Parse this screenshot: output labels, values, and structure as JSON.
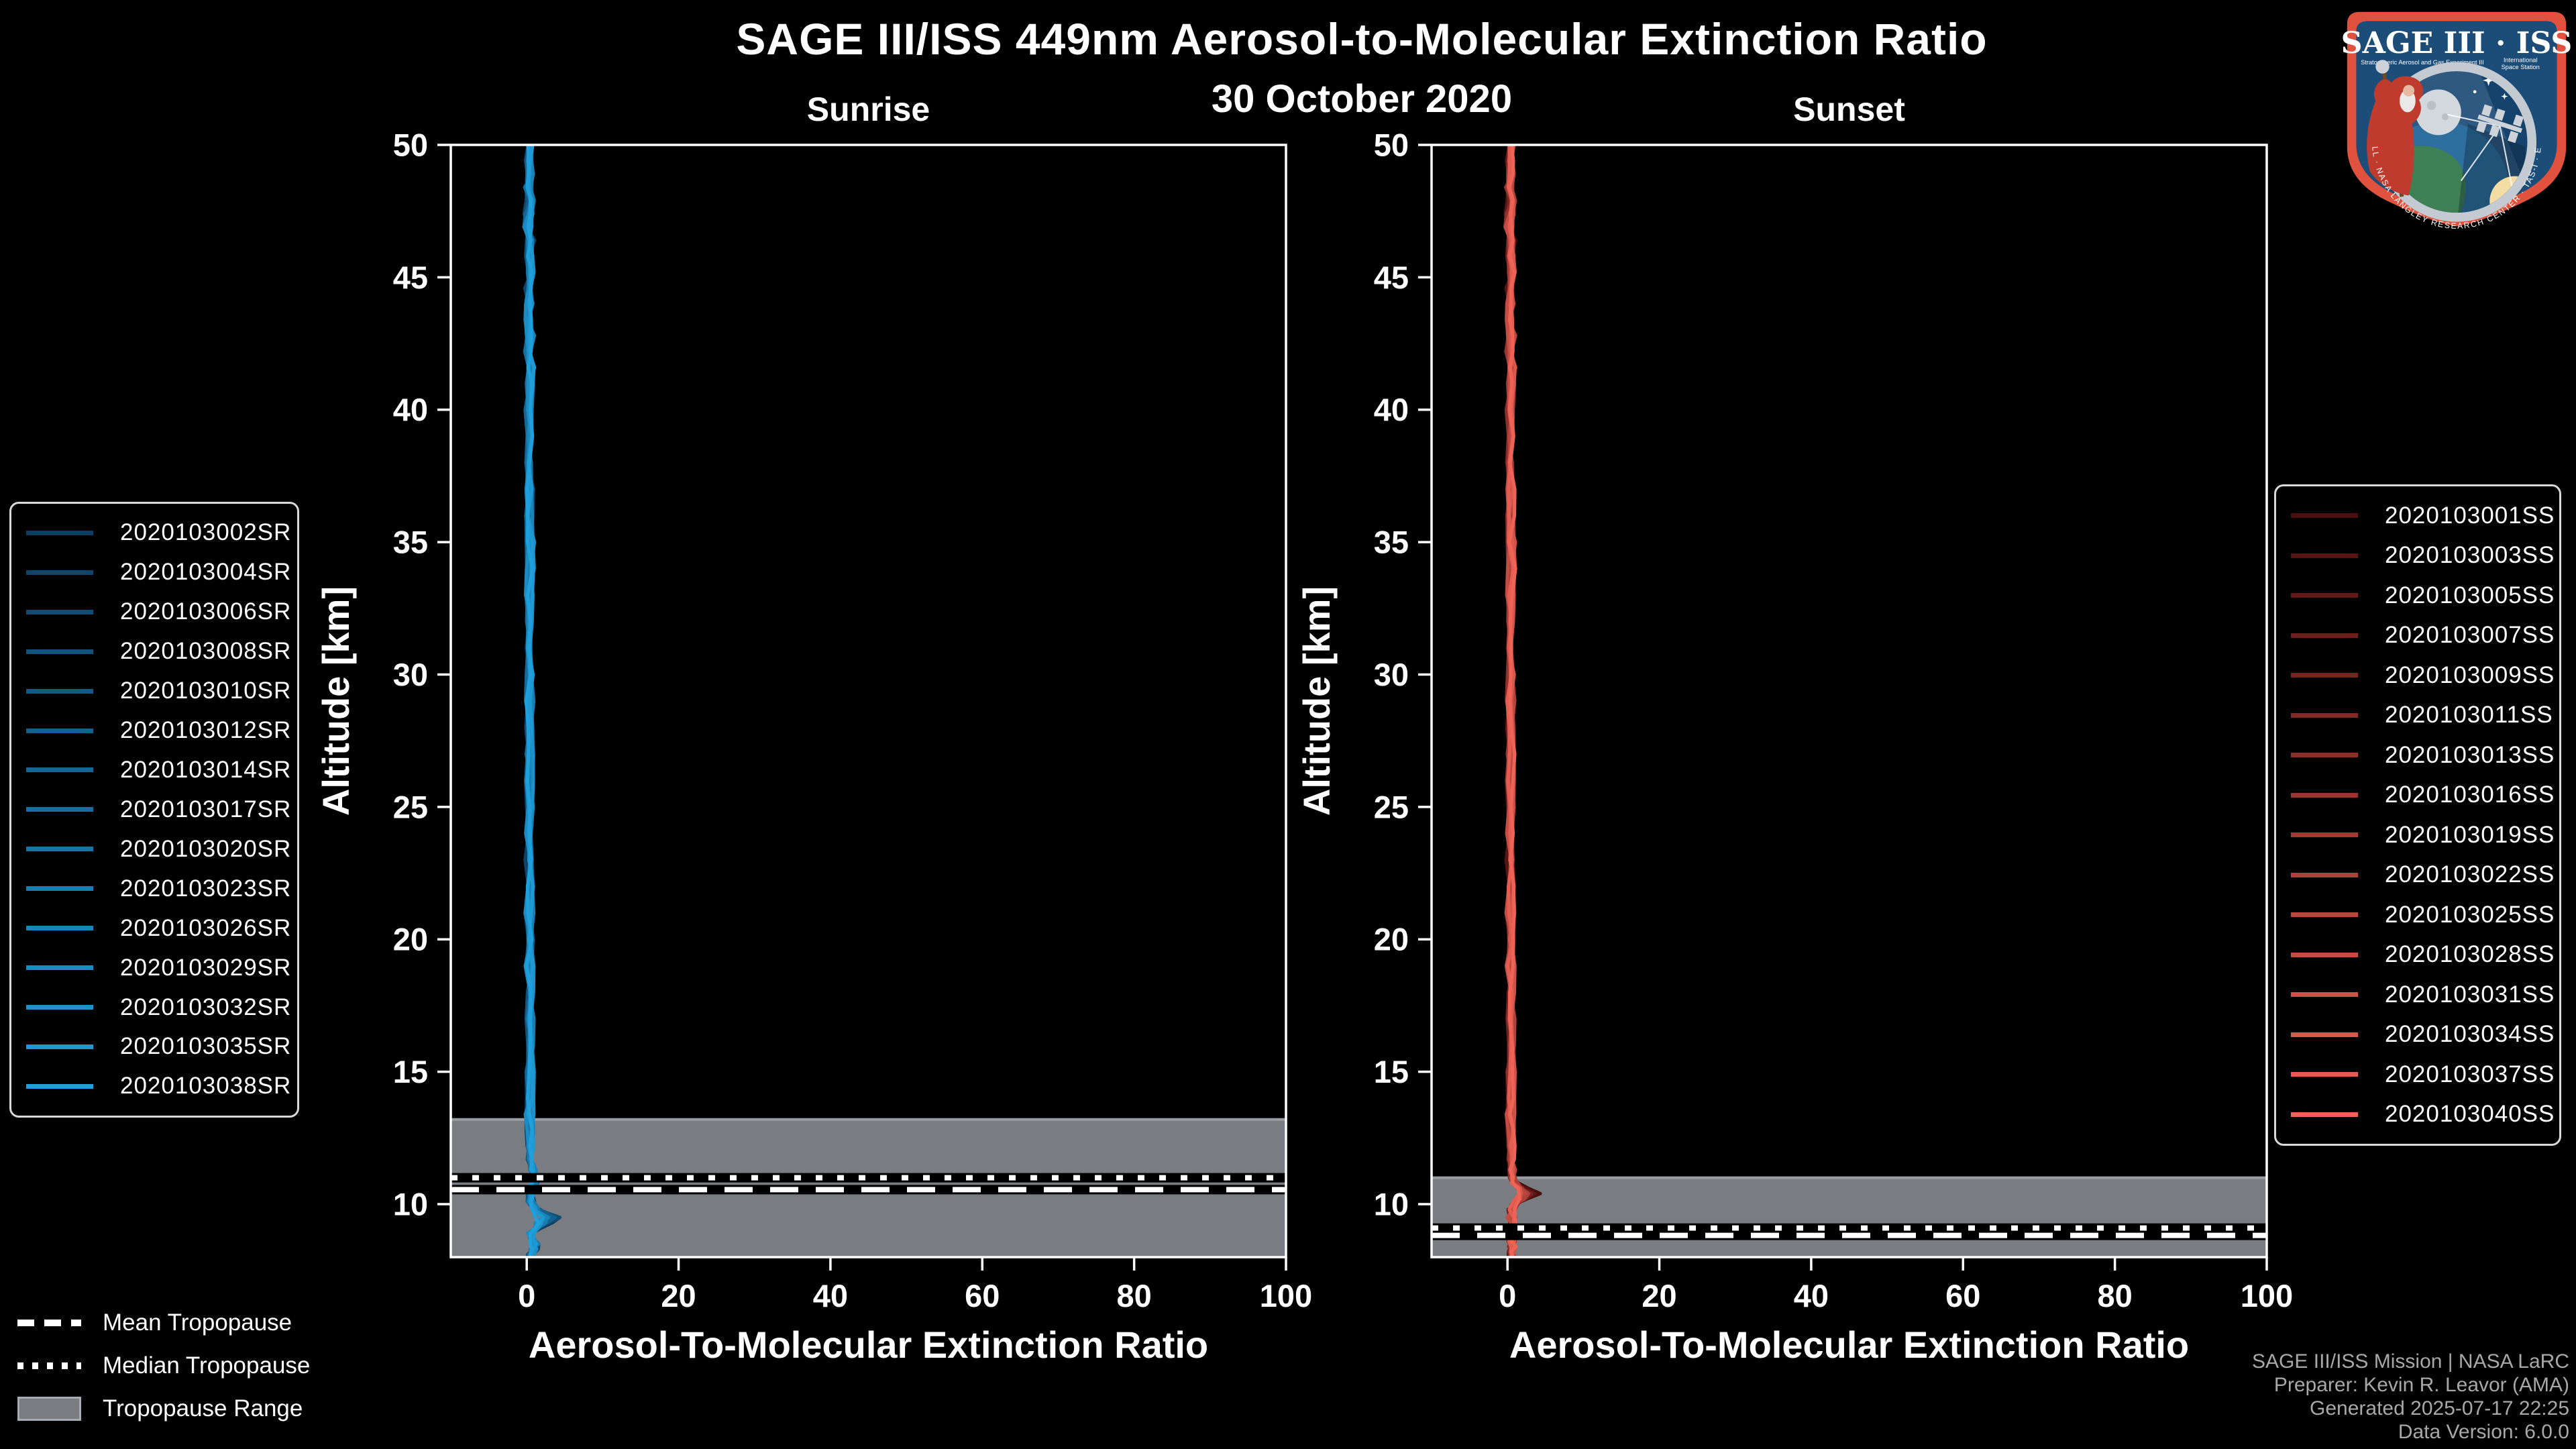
{
  "figure": {
    "title": "SAGE III/ISS 449nm Aerosol-to-Molecular Extinction Ratio",
    "date": "30 October 2020",
    "background": "#000000",
    "text_color": "#ffffff"
  },
  "chart_data": [
    {
      "type": "line",
      "panel": "sunrise",
      "title": "Sunrise",
      "xlabel": "Aerosol-To-Molecular Extinction Ratio",
      "ylabel": "Altitude [km]",
      "xlim": [
        -10,
        100
      ],
      "ylim": [
        8,
        50
      ],
      "xticks": [
        0,
        20,
        40,
        60,
        80,
        100
      ],
      "yticks": [
        10,
        15,
        20,
        25,
        30,
        35,
        40,
        45,
        50
      ],
      "grid": false,
      "legend_position": "outside-left",
      "colors": {
        "band": "#797d81",
        "band_edge": "#989ea3",
        "axis": "#ffffff"
      },
      "tropopause": {
        "mean_km": 10.55,
        "median_km": 11.0,
        "range_top_km": 13.2,
        "range_bottom_km": 8.0
      },
      "series": [
        {
          "name": "2020103002SR",
          "color": "#0E3F63"
        },
        {
          "name": "2020103004SR",
          "color": "#0F456A"
        },
        {
          "name": "2020103006SR",
          "color": "#104C73"
        },
        {
          "name": "2020103008SR",
          "color": "#12537B"
        },
        {
          "name": "2020103010SR",
          "color": "#135A84"
        },
        {
          "name": "2020103012SR",
          "color": "#14618D"
        },
        {
          "name": "2020103014SR",
          "color": "#156896"
        },
        {
          "name": "2020103017SR",
          "color": "#176F9F"
        },
        {
          "name": "2020103020SR",
          "color": "#1876A7"
        },
        {
          "name": "2020103023SR",
          "color": "#197DB0"
        },
        {
          "name": "2020103026SR",
          "color": "#1A84B9"
        },
        {
          "name": "2020103029SR",
          "color": "#1C8BC2"
        },
        {
          "name": "2020103032SR",
          "color": "#1D92CA"
        },
        {
          "name": "2020103035SR",
          "color": "#1E99D3"
        },
        {
          "name": "2020103038SR",
          "color": "#1FA0DC"
        }
      ],
      "profile_note": "all events cluster near ratio 0 with bumps below 11.5 km",
      "mean_profile": [
        [
          50,
          0.35
        ],
        [
          49.4,
          0.15
        ],
        [
          48.9,
          0.5
        ],
        [
          48.4,
          0.2
        ],
        [
          47.9,
          0.45
        ],
        [
          47.4,
          0.25
        ],
        [
          46.9,
          0.15
        ],
        [
          46.4,
          0.45
        ],
        [
          45.8,
          0.25
        ],
        [
          45.2,
          0.45
        ],
        [
          44.6,
          0.2
        ],
        [
          44,
          0.4
        ],
        [
          43.4,
          0.25
        ],
        [
          42.8,
          0.5
        ],
        [
          42.2,
          0.25
        ],
        [
          41.6,
          0.45
        ],
        [
          41,
          0.3
        ],
        [
          40,
          0.3
        ],
        [
          39,
          0.4
        ],
        [
          38,
          0.28
        ],
        [
          37,
          0.42
        ],
        [
          36,
          0.3
        ],
        [
          35,
          0.38
        ],
        [
          34,
          0.45
        ],
        [
          33,
          0.3
        ],
        [
          32,
          0.4
        ],
        [
          31,
          0.3
        ],
        [
          30,
          0.38
        ],
        [
          29,
          0.3
        ],
        [
          28,
          0.42
        ],
        [
          27,
          0.33
        ],
        [
          26,
          0.3
        ],
        [
          25,
          0.4
        ],
        [
          24,
          0.3
        ],
        [
          23,
          0.4
        ],
        [
          22,
          0.44
        ],
        [
          21,
          0.3
        ],
        [
          20,
          0.4
        ],
        [
          19,
          0.32
        ],
        [
          18,
          0.4
        ],
        [
          17,
          0.34
        ],
        [
          16,
          0.44
        ],
        [
          15,
          0.4
        ],
        [
          14,
          0.34
        ],
        [
          13.4,
          0.3
        ],
        [
          12.8,
          0.4
        ],
        [
          12.2,
          0.36
        ],
        [
          11.7,
          0.45
        ],
        [
          11.3,
          0.7
        ],
        [
          11,
          1.5
        ],
        [
          10.7,
          0.8
        ],
        [
          10.4,
          0.5
        ],
        [
          10.1,
          0.5
        ],
        [
          9.9,
          0.9
        ],
        [
          9.7,
          1.9
        ],
        [
          9.5,
          3.2
        ],
        [
          9.3,
          2.4
        ],
        [
          9.1,
          1.2
        ],
        [
          8.9,
          0.6
        ],
        [
          8.7,
          0.8
        ],
        [
          8.5,
          1.2
        ],
        [
          8.3,
          0.9
        ],
        [
          8.1,
          0.5
        ],
        [
          8,
          0.45
        ]
      ]
    },
    {
      "type": "line",
      "panel": "sunset",
      "title": "Sunset",
      "xlabel": "Aerosol-To-Molecular Extinction Ratio",
      "ylabel": "Altitude [km]",
      "xlim": [
        -10,
        100
      ],
      "ylim": [
        8,
        50
      ],
      "xticks": [
        0,
        20,
        40,
        60,
        80,
        100
      ],
      "yticks": [
        10,
        15,
        20,
        25,
        30,
        35,
        40,
        45,
        50
      ],
      "grid": false,
      "legend_position": "outside-right",
      "colors": {
        "band": "#797d81",
        "band_edge": "#989ea3",
        "axis": "#ffffff"
      },
      "tropopause": {
        "mean_km": 8.82,
        "median_km": 9.1,
        "range_top_km": 11.0,
        "range_bottom_km": 8.0
      },
      "series": [
        {
          "name": "2020103001SS",
          "color": "#4C0E0E"
        },
        {
          "name": "2020103003SS",
          "color": "#571413"
        },
        {
          "name": "2020103005SS",
          "color": "#621918"
        },
        {
          "name": "2020103007SS",
          "color": "#6D1F1D"
        },
        {
          "name": "2020103009SS",
          "color": "#772521"
        },
        {
          "name": "2020103011SS",
          "color": "#822A26"
        },
        {
          "name": "2020103013SS",
          "color": "#8D302B"
        },
        {
          "name": "2020103016SS",
          "color": "#983630"
        },
        {
          "name": "2020103019SS",
          "color": "#A33B35"
        },
        {
          "name": "2020103022SS",
          "color": "#AE413A"
        },
        {
          "name": "2020103025SS",
          "color": "#B9473E"
        },
        {
          "name": "2020103028SS",
          "color": "#C34C43"
        },
        {
          "name": "2020103031SS",
          "color": "#CE5248"
        },
        {
          "name": "2020103034SS",
          "color": "#D9584D"
        },
        {
          "name": "2020103037SS",
          "color": "#E45D52"
        },
        {
          "name": "2020103040SS",
          "color": "#EF6357"
        }
      ],
      "profile_note": "all events cluster near ratio 0 with a bump near 10.4 km",
      "mean_profile": [
        [
          50,
          0.4
        ],
        [
          49.4,
          0.2
        ],
        [
          48.9,
          0.5
        ],
        [
          48.4,
          0.25
        ],
        [
          47.9,
          0.5
        ],
        [
          47.4,
          0.3
        ],
        [
          46.9,
          0.2
        ],
        [
          46.4,
          0.5
        ],
        [
          45.8,
          0.3
        ],
        [
          45.2,
          0.5
        ],
        [
          44.6,
          0.25
        ],
        [
          44,
          0.45
        ],
        [
          43.4,
          0.3
        ],
        [
          42.8,
          0.55
        ],
        [
          42.2,
          0.3
        ],
        [
          41.6,
          0.5
        ],
        [
          41,
          0.35
        ],
        [
          40,
          0.35
        ],
        [
          39,
          0.45
        ],
        [
          38,
          0.3
        ],
        [
          37,
          0.45
        ],
        [
          36,
          0.35
        ],
        [
          35,
          0.4
        ],
        [
          34,
          0.5
        ],
        [
          33,
          0.35
        ],
        [
          32,
          0.45
        ],
        [
          31,
          0.32
        ],
        [
          30,
          0.42
        ],
        [
          29,
          0.32
        ],
        [
          28,
          0.45
        ],
        [
          27,
          0.36
        ],
        [
          26,
          0.32
        ],
        [
          25,
          0.42
        ],
        [
          24,
          0.33
        ],
        [
          23,
          0.42
        ],
        [
          22,
          0.46
        ],
        [
          21,
          0.33
        ],
        [
          20,
          0.42
        ],
        [
          19,
          0.35
        ],
        [
          18,
          0.42
        ],
        [
          17,
          0.36
        ],
        [
          16,
          0.46
        ],
        [
          15,
          0.42
        ],
        [
          14,
          0.36
        ],
        [
          13.4,
          0.32
        ],
        [
          12.8,
          0.42
        ],
        [
          12.2,
          0.38
        ],
        [
          11.7,
          0.42
        ],
        [
          11.3,
          0.5
        ],
        [
          11,
          0.65
        ],
        [
          10.8,
          1.0
        ],
        [
          10.6,
          1.9
        ],
        [
          10.4,
          2.8
        ],
        [
          10.2,
          1.9
        ],
        [
          10,
          1.0
        ],
        [
          9.8,
          0.6
        ],
        [
          9.5,
          0.5
        ],
        [
          9.2,
          0.55
        ],
        [
          9,
          0.5
        ],
        [
          8.8,
          0.55
        ],
        [
          8.6,
          0.5
        ],
        [
          8.4,
          0.55
        ],
        [
          8.2,
          0.5
        ],
        [
          8,
          0.5
        ]
      ]
    }
  ],
  "tropopause_legend": {
    "mean_label": "Mean Tropopause",
    "median_label": "Median Tropopause",
    "range_label": "Tropopause Range",
    "range_color": "#797d81"
  },
  "footer": {
    "lines": [
      "SAGE III/ISS Mission | NASA LaRC",
      "Preparer: Kevin R. Leavor (AMA)",
      "Generated 2025-07-17 22:25",
      "Data Version: 6.0.0"
    ],
    "color": "#a8a8a8"
  },
  "logo": {
    "title": "SAGE III · ISS",
    "subtitle_left": "Stratospheric Aerosol and Gas Experiment III",
    "subtitle_right_1": "International",
    "subtitle_right_2": "Space Station",
    "border_text": "BALL · NASA LANGLEY RESEARCH CENTER · TAS-I · ESA",
    "border_color": "#e1523e",
    "field_color": "#1c4d78"
  }
}
